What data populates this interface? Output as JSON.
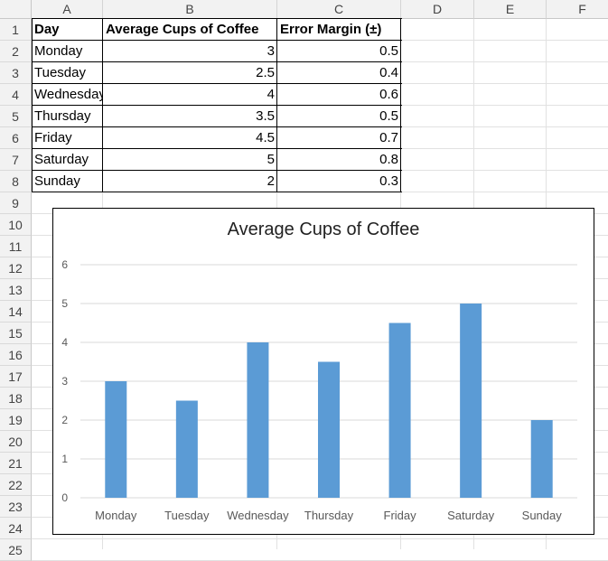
{
  "columns": [
    "A",
    "B",
    "C",
    "D",
    "E",
    "F"
  ],
  "rows": [
    "1",
    "2",
    "3",
    "4",
    "5",
    "6",
    "7",
    "8",
    "9",
    "10",
    "11",
    "12",
    "13",
    "14",
    "15",
    "16",
    "17",
    "18",
    "19",
    "20",
    "21",
    "22",
    "23",
    "24",
    "25"
  ],
  "table": {
    "headers": [
      "Day",
      "Average Cups of Coffee",
      "Error Margin (±)"
    ],
    "rows": [
      [
        "Monday",
        "3",
        "0.5"
      ],
      [
        "Tuesday",
        "2.5",
        "0.4"
      ],
      [
        "Wednesday",
        "4",
        "0.6"
      ],
      [
        "Thursday",
        "3.5",
        "0.5"
      ],
      [
        "Friday",
        "4.5",
        "0.7"
      ],
      [
        "Saturday",
        "5",
        "0.8"
      ],
      [
        "Sunday",
        "2",
        "0.3"
      ]
    ]
  },
  "chart_data": {
    "type": "bar",
    "title": "Average Cups of Coffee",
    "categories": [
      "Monday",
      "Tuesday",
      "Wednesday",
      "Thursday",
      "Friday",
      "Saturday",
      "Sunday"
    ],
    "values": [
      3,
      2.5,
      4,
      3.5,
      4.5,
      5,
      2
    ],
    "ylim": [
      0,
      6
    ],
    "yticks": [
      0,
      1,
      2,
      3,
      4,
      5,
      6
    ],
    "grid": true,
    "bar_color": "#5b9bd5"
  }
}
